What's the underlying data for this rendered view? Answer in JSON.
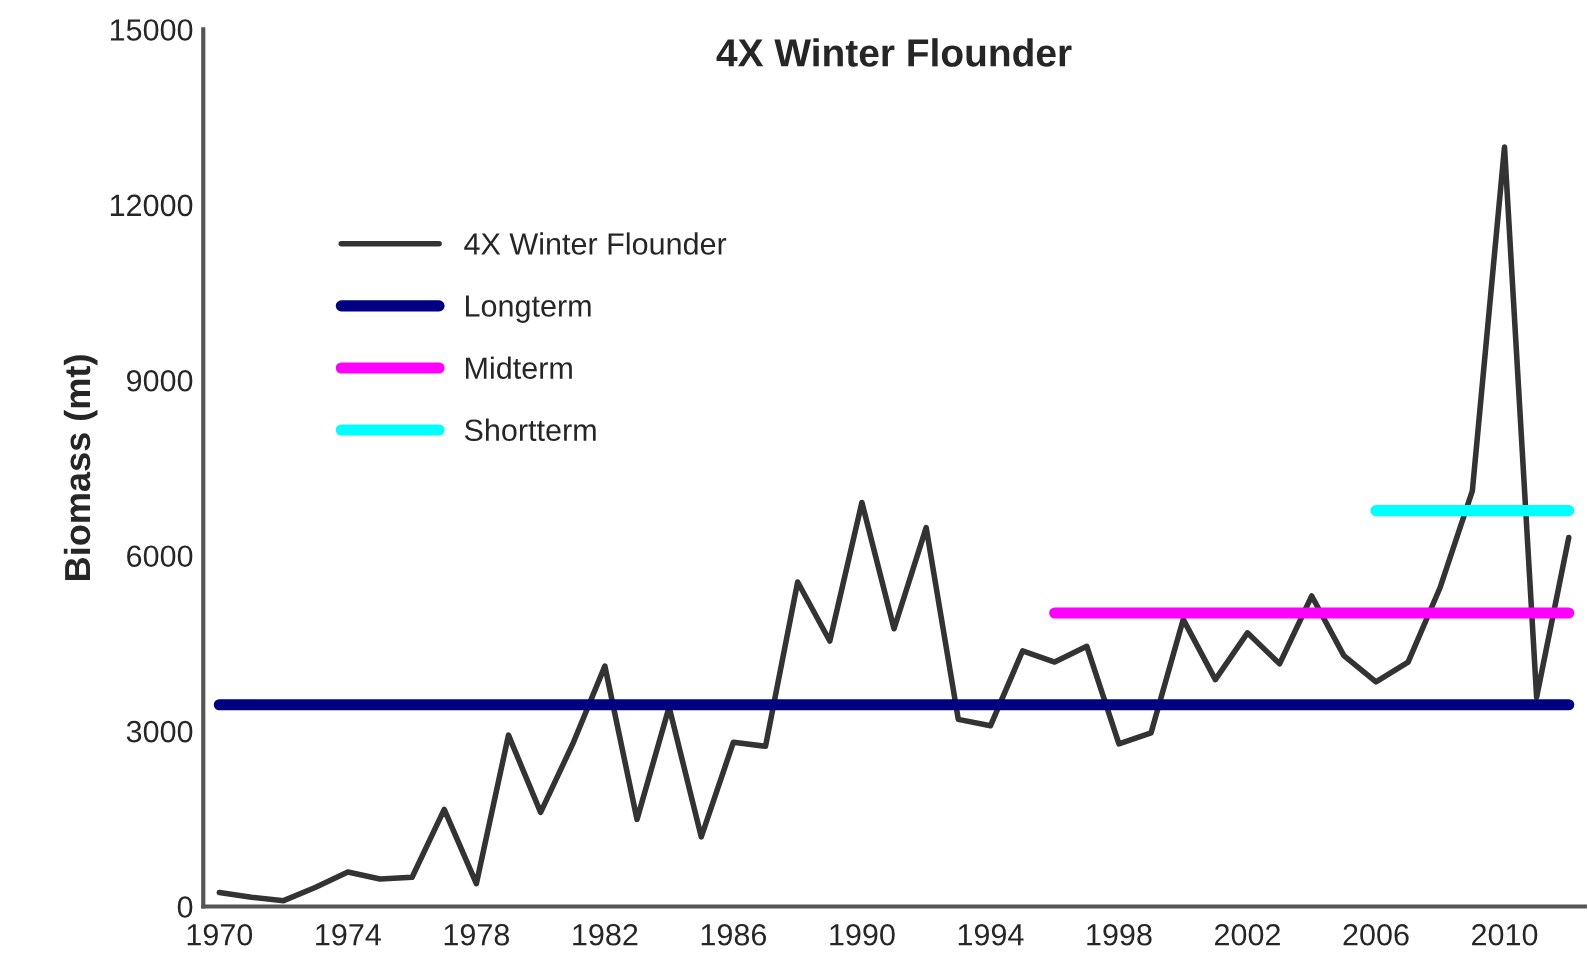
{
  "chart_data": {
    "type": "line",
    "title": "4X Winter Flounder",
    "ylabel": "Biomass (mt)",
    "x": [
      1970,
      1971,
      1972,
      1973,
      1974,
      1975,
      1976,
      1977,
      1978,
      1979,
      1980,
      1981,
      1982,
      1983,
      1984,
      1985,
      1986,
      1987,
      1988,
      1989,
      1990,
      1991,
      1992,
      1993,
      1994,
      1995,
      1996,
      1997,
      1998,
      1999,
      2000,
      2001,
      2002,
      2003,
      2004,
      2005,
      2006,
      2007,
      2008,
      2009,
      2010,
      2011,
      2012
    ],
    "series": [
      {
        "name": "4X Winter Flounder",
        "color": "#333333",
        "values": [
          240,
          160,
          100,
          330,
          590,
          470,
          500,
          1660,
          390,
          2930,
          1610,
          2780,
          4110,
          1490,
          3410,
          1190,
          2810,
          2740,
          5550,
          4540,
          6910,
          4750,
          6480,
          3200,
          3090,
          4370,
          4180,
          4450,
          2780,
          2970,
          4910,
          3880,
          4680,
          4150,
          5310,
          4290,
          3840,
          4180,
          5460,
          7110,
          12990,
          3580,
          6310
        ]
      },
      {
        "name": "Longterm",
        "color": "#000080",
        "x": [
          1970,
          2012
        ],
        "values": [
          3450,
          3450
        ]
      },
      {
        "name": "Midterm",
        "color": "#ff00ff",
        "x": [
          1996,
          2012
        ],
        "values": [
          5020,
          5020
        ]
      },
      {
        "name": "Shortterm",
        "color": "#00ffff",
        "x": [
          2006,
          2012
        ],
        "values": [
          6770,
          6770
        ]
      }
    ],
    "xlim": [
      1969.5,
      2012.5
    ],
    "xticks": [
      1970,
      1974,
      1978,
      1982,
      1986,
      1990,
      1994,
      1998,
      2002,
      2006,
      2010
    ],
    "ylim": [
      0,
      15000
    ],
    "yticks": [
      0,
      3000,
      6000,
      9000,
      12000,
      15000
    ],
    "grid": false,
    "legend": "top left",
    "marker": "none",
    "line_style": "solid"
  }
}
